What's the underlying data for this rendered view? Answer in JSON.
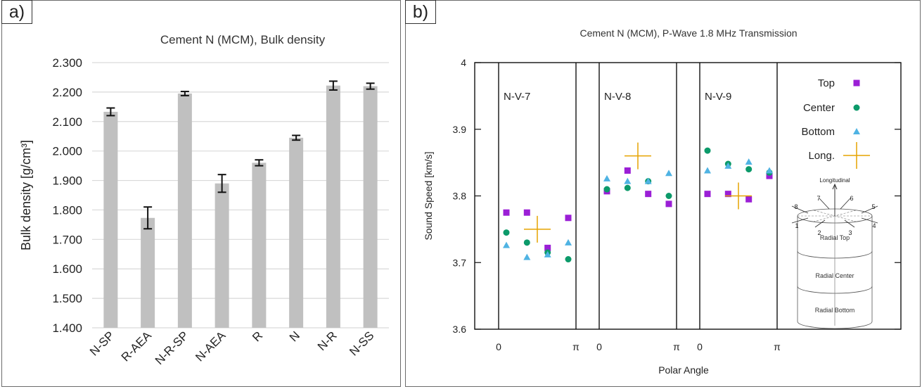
{
  "panels": [
    {
      "label": "a)"
    },
    {
      "label": "b)"
    }
  ],
  "chart_data": [
    {
      "type": "bar",
      "title": "Cement N (MCM), Bulk density",
      "ylabel": "Bulk density [g/cm³]",
      "xlabel": "",
      "ylim": [
        1.4,
        2.3
      ],
      "yticks": [
        "1.400",
        "1.500",
        "1.600",
        "1.700",
        "1.800",
        "1.900",
        "2.000",
        "2.100",
        "2.200",
        "2.300"
      ],
      "grid": true,
      "categories": [
        "N-SP",
        "R-AEA",
        "N-R-SP",
        "N-AEA",
        "R",
        "N",
        "N-R",
        "N-SS"
      ],
      "values": [
        2.133,
        1.773,
        2.195,
        1.89,
        1.96,
        2.045,
        2.222,
        2.22
      ],
      "errors": [
        0.013,
        0.037,
        0.007,
        0.03,
        0.01,
        0.008,
        0.015,
        0.01
      ],
      "bar_color": "#c0c0c0",
      "error_color": "#111111"
    },
    {
      "type": "scatter",
      "title": "Cement N (MCM), P-Wave 1.8 MHz Transmission",
      "xlabel": "Polar Angle",
      "ylabel": "Sound Speed [km/s]",
      "ylim": [
        3.6,
        4.0
      ],
      "yticks": [
        "3.6",
        "3.7",
        "3.8",
        "3.9",
        "4"
      ],
      "xtick_labels": [
        "0",
        "π"
      ],
      "legend": {
        "placement": "right",
        "entries": [
          {
            "name": "Top",
            "marker": "square",
            "color": "#9b1fd6"
          },
          {
            "name": "Center",
            "marker": "circle",
            "color": "#0c9a6a"
          },
          {
            "name": "Bottom",
            "marker": "triangle",
            "color": "#4fb3e3"
          },
          {
            "name": "Long.",
            "marker": "plus",
            "color": "#e6a300"
          }
        ]
      },
      "groups": [
        {
          "name": "N-V-7",
          "series": [
            {
              "name": "Top",
              "x": [
                0.0,
                0.333,
                0.667,
                1.0
              ],
              "y": [
                3.775,
                3.775,
                3.722,
                3.767
              ]
            },
            {
              "name": "Center",
              "x": [
                0.0,
                0.333,
                0.667,
                1.0
              ],
              "y": [
                3.745,
                3.73,
                3.715,
                3.705
              ]
            },
            {
              "name": "Bottom",
              "x": [
                0.0,
                0.333,
                0.667,
                1.0
              ],
              "y": [
                3.726,
                3.708,
                3.712,
                3.73
              ]
            },
            {
              "name": "Long.",
              "x": [
                0.5
              ],
              "y": [
                3.75
              ]
            }
          ]
        },
        {
          "name": "N-V-8",
          "series": [
            {
              "name": "Top",
              "x": [
                0.0,
                0.333,
                0.667,
                1.0
              ],
              "y": [
                3.807,
                3.838,
                3.803,
                3.788
              ]
            },
            {
              "name": "Center",
              "x": [
                0.0,
                0.333,
                0.667,
                1.0
              ],
              "y": [
                3.81,
                3.812,
                3.822,
                3.8
              ]
            },
            {
              "name": "Bottom",
              "x": [
                0.0,
                0.333,
                0.667,
                1.0
              ],
              "y": [
                3.826,
                3.822,
                3.822,
                3.834
              ]
            },
            {
              "name": "Long.",
              "x": [
                0.5
              ],
              "y": [
                3.86
              ]
            }
          ]
        },
        {
          "name": "N-V-9",
          "series": [
            {
              "name": "Top",
              "x": [
                0.0,
                0.333,
                0.667,
                1.0
              ],
              "y": [
                3.803,
                3.803,
                3.795,
                3.83
              ]
            },
            {
              "name": "Center",
              "x": [
                0.0,
                0.333,
                0.667,
                1.0
              ],
              "y": [
                3.868,
                3.848,
                3.84,
                3.835
              ]
            },
            {
              "name": "Bottom",
              "x": [
                0.0,
                0.333,
                0.667,
                1.0
              ],
              "y": [
                3.838,
                3.845,
                3.851,
                3.838
              ]
            },
            {
              "name": "Long.",
              "x": [
                0.5
              ],
              "y": [
                3.8
              ]
            }
          ]
        }
      ],
      "diagram": {
        "top_label": "Longitudinal",
        "direction_labels": [
          "1",
          "2",
          "3",
          "4",
          "5",
          "6",
          "7",
          "8"
        ],
        "section_labels": [
          "Radial Top",
          "Radial Center",
          "Radial Bottom"
        ]
      }
    }
  ]
}
